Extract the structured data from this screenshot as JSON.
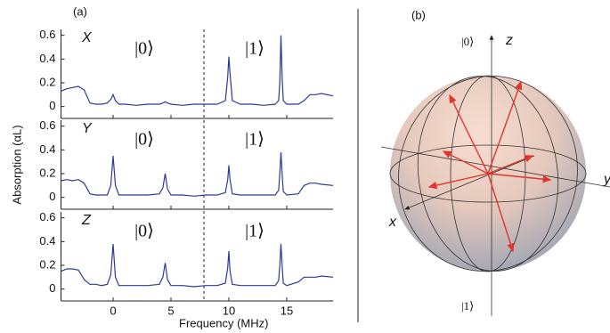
{
  "chart_data": [
    {
      "type": "line",
      "panel_label": "(a)",
      "label": "X",
      "annotations": [
        "|0⟩",
        "|1⟩"
      ],
      "x": [
        -4.5,
        -4,
        -3.5,
        -3,
        -2.5,
        -2,
        -1.5,
        -1,
        -0.5,
        -0.2,
        0,
        0.2,
        0.5,
        1,
        2,
        3,
        4,
        4.3,
        4.5,
        4.7,
        5,
        6,
        7,
        8,
        9,
        9.7,
        9.9,
        10,
        10.1,
        10.3,
        11,
        12,
        13,
        14,
        14.3,
        14.4,
        14.5,
        14.6,
        14.7,
        15,
        16,
        16.5,
        17,
        17.5,
        18,
        19
      ],
      "values": [
        0.13,
        0.15,
        0.16,
        0.17,
        0.14,
        0.03,
        0.02,
        0.02,
        0.03,
        0.06,
        0.1,
        0.05,
        0.02,
        0.02,
        0.01,
        0.02,
        0.02,
        0.03,
        0.04,
        0.03,
        0.02,
        0.01,
        0.02,
        0.02,
        0.02,
        0.05,
        0.25,
        0.42,
        0.28,
        0.05,
        0.02,
        0.02,
        0.01,
        0.02,
        0.05,
        0.2,
        0.6,
        0.25,
        0.05,
        0.02,
        0.02,
        0.05,
        0.1,
        0.1,
        0.11,
        0.09
      ],
      "color": "#2b3a9a",
      "xlim": [
        -4.5,
        19
      ],
      "ylim": [
        -0.1,
        0.65
      ],
      "yticks": [
        0,
        0.2,
        0.4,
        0.6
      ]
    },
    {
      "type": "line",
      "label": "Y",
      "annotations": [
        "|0⟩",
        "|1⟩"
      ],
      "ylabel": "Absorption (αL)",
      "x": [
        -4.5,
        -4,
        -3.5,
        -3,
        -2.5,
        -2,
        -1.5,
        -1,
        -0.5,
        -0.2,
        0,
        0.2,
        0.5,
        1,
        2,
        3,
        4,
        4.3,
        4.5,
        4.7,
        5,
        6,
        7,
        8,
        9,
        9.7,
        9.9,
        10,
        10.1,
        10.3,
        11,
        12,
        13,
        14,
        14.3,
        14.4,
        14.5,
        14.6,
        14.7,
        15,
        16,
        16.5,
        17,
        17.5,
        18,
        19
      ],
      "values": [
        0.14,
        0.15,
        0.14,
        0.15,
        0.12,
        0.03,
        0.02,
        0.02,
        0.02,
        0.1,
        0.35,
        0.1,
        0.02,
        0.02,
        0.02,
        0.02,
        0.03,
        0.08,
        0.2,
        0.07,
        0.02,
        0.02,
        0.01,
        0.02,
        0.02,
        0.04,
        0.15,
        0.27,
        0.15,
        0.03,
        0.02,
        0.02,
        0.02,
        0.02,
        0.06,
        0.2,
        0.38,
        0.2,
        0.05,
        0.02,
        0.03,
        0.1,
        0.12,
        0.12,
        0.11,
        0.1
      ],
      "color": "#2b3a9a",
      "xlim": [
        -4.5,
        19
      ],
      "ylim": [
        -0.1,
        0.65
      ],
      "yticks": [
        0,
        0.2,
        0.4,
        0.6
      ]
    },
    {
      "type": "line",
      "label": "Z",
      "annotations": [
        "|0⟩",
        "|1⟩"
      ],
      "xlabel": "Frequency (MHz)",
      "x": [
        -4.5,
        -4,
        -3.5,
        -3,
        -2.5,
        -2,
        -1.5,
        -1,
        -0.5,
        -0.2,
        0,
        0.2,
        0.5,
        1,
        2,
        3,
        4,
        4.3,
        4.5,
        4.7,
        5,
        6,
        7,
        8,
        9,
        9.7,
        9.9,
        10,
        10.1,
        10.3,
        11,
        12,
        13,
        14,
        14.3,
        14.4,
        14.5,
        14.6,
        14.7,
        15,
        16,
        16.5,
        17,
        17.5,
        18,
        19
      ],
      "values": [
        0.15,
        0.17,
        0.17,
        0.16,
        0.08,
        0.04,
        0.04,
        0.03,
        0.04,
        0.12,
        0.38,
        0.1,
        0.03,
        0.03,
        0.03,
        0.03,
        0.04,
        0.1,
        0.22,
        0.08,
        0.03,
        0.03,
        0.02,
        0.03,
        0.03,
        0.05,
        0.18,
        0.32,
        0.15,
        0.04,
        0.03,
        0.03,
        0.03,
        0.03,
        0.07,
        0.2,
        0.38,
        0.2,
        0.05,
        0.03,
        0.06,
        0.1,
        0.1,
        0.1,
        0.11,
        0.1
      ],
      "color": "#2b3a9a",
      "xlim": [
        -4.5,
        19
      ],
      "ylim": [
        -0.1,
        0.65
      ],
      "yticks": [
        0,
        0.2,
        0.4,
        0.6
      ],
      "xticks": [
        0,
        5,
        10,
        15
      ]
    }
  ],
  "bloch": {
    "panel_label": "(b)",
    "axis_labels": [
      "z",
      "x",
      "y"
    ],
    "state_labels": [
      "|0⟩",
      "|1⟩"
    ]
  }
}
